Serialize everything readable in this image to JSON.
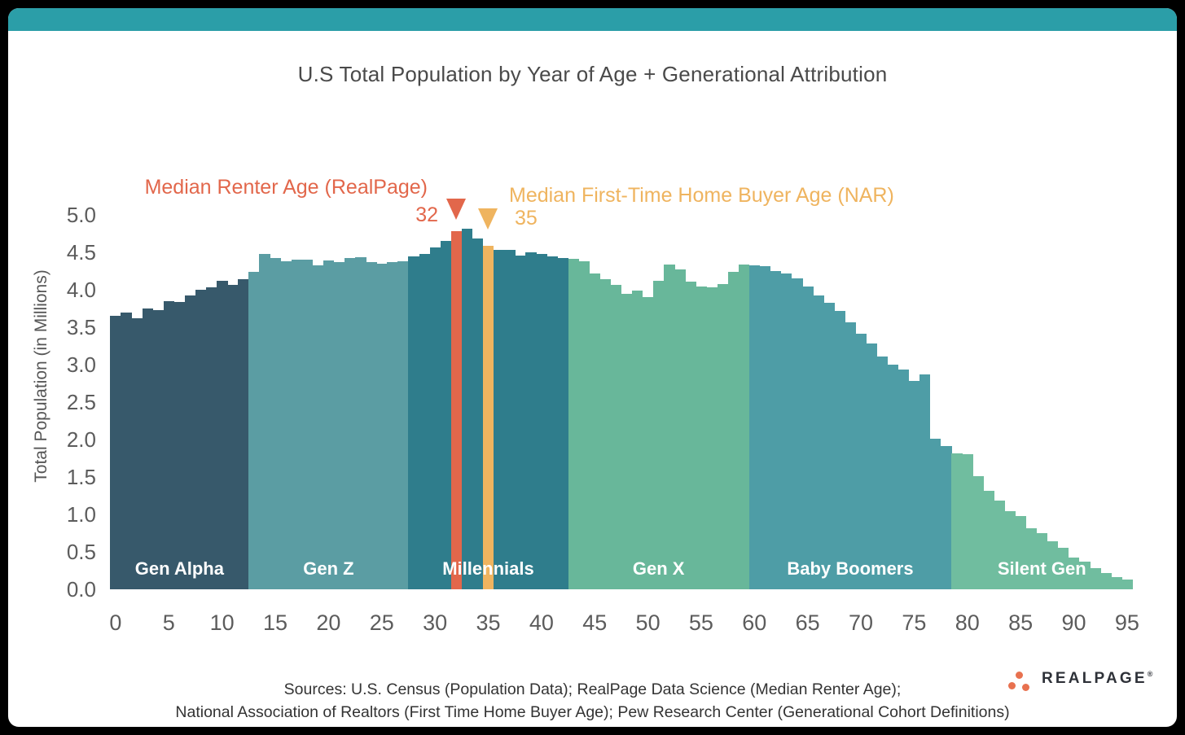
{
  "theme": {
    "topbar_color": "#2B9EA8",
    "card_background": "#FFFFFF",
    "page_background": "#000000"
  },
  "chart_data": {
    "type": "bar",
    "title": "U.S Total Population by Year of Age + Generational Attribution",
    "xlabel": "",
    "ylabel": "Total Population (in Millions)",
    "ylim": [
      0.0,
      5.0
    ],
    "ytick_labels": [
      "0.0",
      "0.5",
      "1.0",
      "1.5",
      "2.0",
      "2.5",
      "3.0",
      "3.5",
      "4.0",
      "4.5",
      "5.0"
    ],
    "xticks": [
      0,
      5,
      10,
      15,
      20,
      25,
      30,
      35,
      40,
      45,
      50,
      55,
      60,
      65,
      70,
      75,
      80,
      85,
      90,
      95
    ],
    "x_unit": "age_years",
    "grid": false,
    "bar_gap": false,
    "values": [
      3.65,
      3.7,
      3.62,
      3.75,
      3.73,
      3.85,
      3.84,
      3.92,
      4.0,
      4.03,
      4.12,
      4.07,
      4.14,
      4.24,
      4.48,
      4.42,
      4.38,
      4.4,
      4.4,
      4.33,
      4.39,
      4.37,
      4.42,
      4.44,
      4.37,
      4.35,
      4.37,
      4.38,
      4.45,
      4.48,
      4.57,
      4.65,
      4.78,
      4.82,
      4.68,
      4.59,
      4.53,
      4.53,
      4.46,
      4.5,
      4.48,
      4.45,
      4.42,
      4.41,
      4.38,
      4.22,
      4.14,
      4.06,
      3.95,
      3.99,
      3.9,
      4.12,
      4.34,
      4.27,
      4.11,
      4.04,
      4.03,
      4.08,
      4.24,
      4.34,
      4.33,
      4.31,
      4.25,
      4.22,
      4.15,
      4.04,
      3.92,
      3.83,
      3.72,
      3.57,
      3.41,
      3.28,
      3.11,
      3.0,
      2.94,
      2.78,
      2.87,
      2.01,
      1.91,
      1.82,
      1.8,
      1.51,
      1.31,
      1.18,
      1.04,
      0.98,
      0.82,
      0.75,
      0.64,
      0.55,
      0.42,
      0.37,
      0.28,
      0.22,
      0.16,
      0.13
    ],
    "generations": [
      {
        "label": "Gen Alpha",
        "start": 0,
        "end": 12,
        "color": "#37596B"
      },
      {
        "label": "Gen Z",
        "start": 13,
        "end": 27,
        "color": "#5B9DA3"
      },
      {
        "label": "Millennials",
        "start": 28,
        "end": 42,
        "color": "#2F7D8C"
      },
      {
        "label": "Gen X",
        "start": 43,
        "end": 59,
        "color": "#68B79A"
      },
      {
        "label": "Baby Boomers",
        "start": 60,
        "end": 78,
        "color": "#4E9DA6"
      },
      {
        "label": "Silent Gen",
        "start": 79,
        "end": 95,
        "color": "#70BD9F"
      }
    ],
    "annotations": [
      {
        "id": "renter",
        "label": "Median Renter Age (RealPage)",
        "value": "32",
        "age": 32,
        "color": "#E2674B"
      },
      {
        "id": "buyer",
        "label": "Median First-Time Home Buyer Age (NAR)",
        "value": "35",
        "age": 35,
        "color": "#EFB45F"
      }
    ]
  },
  "footer": {
    "line1": "Sources: U.S. Census (Population Data); RealPage Data Science (Median Renter Age);",
    "line2": "National Association of Realtors (First Time Home Buyer Age); Pew Research Center (Generational Cohort Definitions)"
  },
  "logo": {
    "text": "REALPAGE",
    "mark": "®",
    "dot_color": "#E8714F"
  }
}
